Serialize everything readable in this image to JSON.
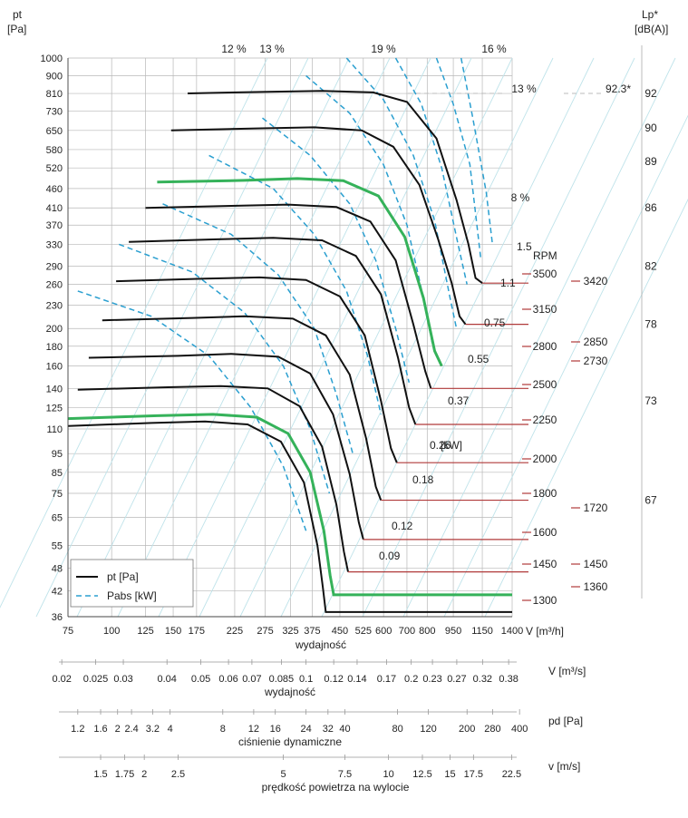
{
  "chart_data": {
    "type": "line",
    "title": "",
    "xlabel": "wydajność",
    "x_unit": "V [m³/h]",
    "ylabel": "pt",
    "y_unit": "[Pa]",
    "y_ticks": [
      1000,
      900,
      810,
      730,
      650,
      580,
      520,
      460,
      410,
      370,
      330,
      290,
      260,
      230,
      200,
      180,
      160,
      140,
      125,
      110,
      95,
      85,
      75,
      65,
      55,
      48,
      42,
      36
    ],
    "x_ticks": [
      75,
      100,
      125,
      150,
      175,
      225,
      275,
      325,
      375,
      450,
      525,
      600,
      700,
      800,
      950,
      1150,
      1400
    ],
    "lp_label": "Lp*",
    "lp_unit": "[dB(A)]",
    "lp_ticks": [
      {
        "value": 92,
        "pt": 810
      },
      {
        "value": 90,
        "pt": 660
      },
      {
        "value": 89,
        "pt": 540
      },
      {
        "value": 86,
        "pt": 410
      },
      {
        "value": 82,
        "pt": 290
      },
      {
        "value": 78,
        "pt": 205
      },
      {
        "value": 73,
        "pt": 130
      },
      {
        "value": 67,
        "pt": 72
      }
    ],
    "lp_marker": {
      "label": "92.3*",
      "pt": 810
    },
    "efficiency_labels": [
      "12 %",
      "13 %",
      "19 %",
      "16 %",
      "13 %",
      "8 %"
    ],
    "rpm_title": "RPM",
    "rpm_curves": [
      {
        "rpm": 3500,
        "points": [
          [
            165,
            810
          ],
          [
            280,
            818
          ],
          [
            400,
            822
          ],
          [
            560,
            815
          ],
          [
            700,
            770
          ],
          [
            850,
            620
          ],
          [
            970,
            430
          ],
          [
            1050,
            330
          ],
          [
            1100,
            270
          ],
          [
            1150,
            262
          ]
        ]
      },
      {
        "rpm": 3150,
        "points": [
          [
            148,
            650
          ],
          [
            260,
            658
          ],
          [
            380,
            662
          ],
          [
            520,
            650
          ],
          [
            640,
            590
          ],
          [
            760,
            470
          ],
          [
            860,
            340
          ],
          [
            940,
            262
          ],
          [
            990,
            215
          ],
          [
            1030,
            205
          ]
        ]
      },
      {
        "rpm": 2730,
        "green": true,
        "points": [
          [
            135,
            478
          ],
          [
            240,
            483
          ],
          [
            340,
            488
          ],
          [
            460,
            482
          ],
          [
            580,
            440
          ],
          [
            690,
            345
          ],
          [
            780,
            240
          ],
          [
            840,
            175
          ],
          [
            880,
            160
          ]
        ]
      },
      {
        "rpm": 2500,
        "points": [
          [
            125,
            410
          ],
          [
            220,
            415
          ],
          [
            320,
            418
          ],
          [
            440,
            412
          ],
          [
            550,
            378
          ],
          [
            650,
            300
          ],
          [
            730,
            205
          ],
          [
            790,
            155
          ],
          [
            820,
            140
          ]
        ]
      },
      {
        "rpm": 2250,
        "points": [
          [
            112,
            335
          ],
          [
            200,
            340
          ],
          [
            290,
            343
          ],
          [
            400,
            338
          ],
          [
            500,
            308
          ],
          [
            590,
            245
          ],
          [
            660,
            168
          ],
          [
            710,
            125
          ],
          [
            740,
            113
          ]
        ]
      },
      {
        "rpm": 2000,
        "points": [
          [
            103,
            265
          ],
          [
            185,
            269
          ],
          [
            265,
            271
          ],
          [
            360,
            267
          ],
          [
            450,
            242
          ],
          [
            530,
            192
          ],
          [
            590,
            130
          ],
          [
            630,
            98
          ],
          [
            655,
            90
          ]
        ]
      },
      {
        "rpm": 1800,
        "points": [
          [
            94,
            210
          ],
          [
            170,
            213
          ],
          [
            240,
            215
          ],
          [
            330,
            212
          ],
          [
            410,
            192
          ],
          [
            480,
            152
          ],
          [
            535,
            104
          ],
          [
            570,
            78
          ],
          [
            590,
            72
          ]
        ]
      },
      {
        "rpm": 1600,
        "points": [
          [
            86,
            168
          ],
          [
            155,
            170
          ],
          [
            220,
            172
          ],
          [
            300,
            169
          ],
          [
            370,
            153
          ],
          [
            430,
            120
          ],
          [
            480,
            84
          ],
          [
            510,
            63
          ],
          [
            525,
            57
          ]
        ]
      },
      {
        "rpm": 1450,
        "points": [
          [
            80,
            139
          ],
          [
            145,
            141
          ],
          [
            205,
            142
          ],
          [
            280,
            140
          ],
          [
            345,
            126
          ],
          [
            400,
            99
          ],
          [
            440,
            70
          ],
          [
            462,
            53
          ],
          [
            475,
            47
          ]
        ]
      },
      {
        "rpm": 1360,
        "green": true,
        "points": [
          [
            75,
            117
          ],
          [
            135,
            119
          ],
          [
            195,
            120
          ],
          [
            260,
            118
          ],
          [
            320,
            107
          ],
          [
            370,
            85
          ],
          [
            405,
            60
          ],
          [
            422,
            46
          ],
          [
            432,
            41
          ],
          [
            1400,
            41
          ]
        ]
      },
      {
        "rpm": 1300,
        "points": [
          [
            75,
            112
          ],
          [
            130,
            114
          ],
          [
            185,
            115
          ],
          [
            245,
            113
          ],
          [
            305,
            102
          ],
          [
            355,
            80
          ],
          [
            388,
            55
          ],
          [
            402,
            43
          ],
          [
            410,
            37
          ],
          [
            1400,
            37
          ]
        ]
      }
    ],
    "rpm_right_labels": [
      3500,
      3150,
      2800,
      2500,
      2250,
      2000,
      1800,
      1600,
      1450,
      1300
    ],
    "rpm_far_right_labels": [
      3420,
      2850,
      2730,
      1720,
      1450,
      1360
    ],
    "power_curves": [
      {
        "kw": "1.5",
        "points": [
          [
            1000,
            1000
          ],
          [
            1080,
            700
          ],
          [
            1180,
            450
          ],
          [
            1230,
            330
          ]
        ]
      },
      {
        "kw": "1.1",
        "points": [
          [
            850,
            1000
          ],
          [
            950,
            760
          ],
          [
            1060,
            530
          ],
          [
            1140,
            300
          ]
        ]
      },
      {
        "kw": "0.75",
        "points": [
          [
            650,
            1000
          ],
          [
            770,
            760
          ],
          [
            880,
            520
          ],
          [
            980,
            330
          ],
          [
            1040,
            260
          ]
        ]
      },
      {
        "kw": "0.55",
        "points": [
          [
            470,
            1000
          ],
          [
            600,
            780
          ],
          [
            730,
            560
          ],
          [
            840,
            380
          ],
          [
            930,
            240
          ],
          [
            970,
            200
          ]
        ]
      },
      {
        "kw": "0.37",
        "points": [
          [
            360,
            900
          ],
          [
            480,
            720
          ],
          [
            600,
            530
          ],
          [
            700,
            370
          ],
          [
            780,
            240
          ],
          [
            830,
            180
          ]
        ]
      },
      {
        "kw": "0.25",
        "points": [
          [
            270,
            700
          ],
          [
            370,
            560
          ],
          [
            480,
            420
          ],
          [
            570,
            300
          ],
          [
            650,
            200
          ],
          [
            710,
            145
          ]
        ]
      },
      {
        "kw": "0.18",
        "points": [
          [
            190,
            560
          ],
          [
            290,
            460
          ],
          [
            380,
            350
          ],
          [
            470,
            250
          ],
          [
            540,
            170
          ],
          [
            590,
            120
          ]
        ]
      },
      {
        "kw": "0.12",
        "points": [
          [
            140,
            420
          ],
          [
            220,
            350
          ],
          [
            300,
            275
          ],
          [
            380,
            200
          ],
          [
            440,
            135
          ],
          [
            490,
            95
          ]
        ]
      },
      {
        "kw": "0.09",
        "points": [
          [
            105,
            330
          ],
          [
            170,
            280
          ],
          [
            240,
            220
          ],
          [
            310,
            160
          ],
          [
            370,
            110
          ],
          [
            420,
            75
          ]
        ]
      },
      {
        "kw": "",
        "points": [
          [
            80,
            250
          ],
          [
            130,
            215
          ],
          [
            190,
            170
          ],
          [
            250,
            125
          ],
          [
            310,
            88
          ],
          [
            360,
            60
          ]
        ]
      }
    ],
    "kw_unit": "[kW]",
    "legend": [
      {
        "key": "pt",
        "label": "pt [Pa]",
        "style": "solid-black"
      },
      {
        "key": "pabs",
        "label": "Pabs [kW]",
        "style": "dashed-blue"
      }
    ],
    "secondary_axes": [
      {
        "name": "V",
        "unit": "V  [m³/s]",
        "label": "wydajność",
        "ticks": [
          "0.02",
          "0.025",
          "0.03",
          "0.04",
          "0.05",
          "0.06",
          "0.07",
          "0.085",
          "0.1",
          "0.12",
          "0.14",
          "0.17",
          "0.2",
          "0.23",
          "0.27",
          "0.32",
          "0.38"
        ],
        "tick_m3h": [
          72,
          90,
          108,
          144,
          180,
          216,
          252,
          306,
          360,
          432,
          504,
          612,
          720,
          828,
          972,
          1152,
          1368
        ]
      },
      {
        "name": "pd",
        "unit": "pd  [Pa]",
        "label": "ciśnienie dynamiczne",
        "ticks": [
          "1.2",
          "1.6",
          "2",
          "2.4",
          "3.2",
          "4",
          "8",
          "12",
          "16",
          "24",
          "32",
          "40",
          "80",
          "120",
          "200",
          "280",
          "400"
        ],
        "tick_m3h": [
          80,
          93,
          104,
          114,
          131,
          147,
          208,
          255,
          294,
          360,
          416,
          465,
          658,
          806,
          1040,
          1231,
          1470
        ]
      },
      {
        "name": "v",
        "unit": "v  [m/s]",
        "label": "prędkość powietrza na wylocie",
        "ticks": [
          "1.5",
          "1.75",
          "2",
          "2.5",
          "5",
          "7.5",
          "10",
          "12.5",
          "15",
          "17.5",
          "22.5"
        ],
        "tick_m3h": [
          93,
          109,
          124,
          155,
          310,
          465,
          620,
          775,
          930,
          1085,
          1395
        ]
      }
    ]
  },
  "colors": {
    "green": "#35b25a",
    "blue": "#2a9fd0",
    "rpm_line": "#b03a3a",
    "grid": "#b8b8b8"
  }
}
